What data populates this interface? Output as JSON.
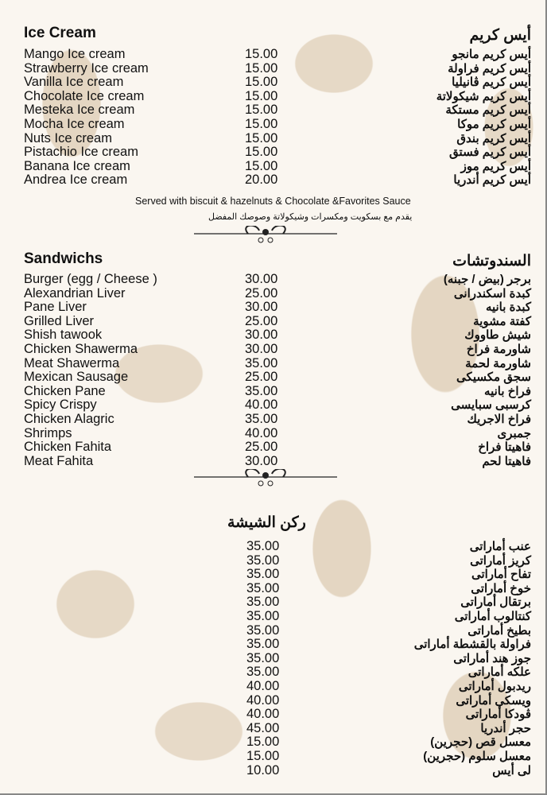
{
  "ice_cream": {
    "title_en": "Ice Cream",
    "title_ar": "أيس كريم",
    "items": [
      {
        "en": "Mango Ice cream",
        "price": "15.00",
        "ar": "أيس كريم مانجو"
      },
      {
        "en": "Strawberry Ice cream",
        "price": "15.00",
        "ar": "أيس كريم فراولة"
      },
      {
        "en": "Vanilla Ice cream",
        "price": "15.00",
        "ar": "أيس كريم ڤانيليا"
      },
      {
        "en": "Chocolate Ice cream",
        "price": "15.00",
        "ar": "أيس كريم شيكولاتة"
      },
      {
        "en": "Mesteka Ice cream",
        "price": "15.00",
        "ar": "أيس كريم مستكة"
      },
      {
        "en": "Mocha Ice cream",
        "price": "15.00",
        "ar": "أيس كريم موكا"
      },
      {
        "en": "Nuts Ice cream",
        "price": "15.00",
        "ar": "أيس كريم بندق"
      },
      {
        "en": "Pistachio Ice cream",
        "price": "15.00",
        "ar": "أيس كريم فستق"
      },
      {
        "en": "Banana Ice cream",
        "price": "15.00",
        "ar": "أيس كريم موز"
      },
      {
        "en": "Andrea Ice cream",
        "price": "20.00",
        "ar": "أيس كريم أندريا"
      }
    ],
    "note_en": "Served with biscuit & hazelnuts & Chocolate &Favorites Sauce",
    "note_ar": "يقدم مع بسكويت ومكسرات وشيكولاتة وصوصك المفضل"
  },
  "sandwiches": {
    "title_en": "Sandwichs",
    "title_ar": "السندوتشات",
    "items": [
      {
        "en": "Burger (egg / Cheese )",
        "price": "30.00",
        "ar": "برجر (بيض / جبنه)"
      },
      {
        "en": "Alexandrian Liver",
        "price": "25.00",
        "ar": "كبدة اسكندرانى"
      },
      {
        "en": "Pane Liver",
        "price": "30.00",
        "ar": "كبدة بانيه"
      },
      {
        "en": "Grilled Liver",
        "price": "25.00",
        "ar": "كفتة مشوية"
      },
      {
        "en": "Shish tawook",
        "price": "30.00",
        "ar": "شيش طاووك"
      },
      {
        "en": "Chicken Shawerma",
        "price": "30.00",
        "ar": "شاورمة فراخ"
      },
      {
        "en": "Meat Shawerma",
        "price": "35.00",
        "ar": "شاورمة لحمة"
      },
      {
        "en": "Mexican Sausage",
        "price": "25.00",
        "ar": "سجق مكسيكى"
      },
      {
        "en": "Chicken Pane",
        "price": "35.00",
        "ar": "فراخ بانيه"
      },
      {
        "en": "Spicy Crispy",
        "price": "40.00",
        "ar": "كرسبى سبايسى"
      },
      {
        "en": "Chicken Alagric",
        "price": "35.00",
        "ar": "فراخ الاجريك"
      },
      {
        "en": "Shrimps",
        "price": "40.00",
        "ar": "جمبرى"
      },
      {
        "en": "Chicken Fahita",
        "price": "25.00",
        "ar": "فاهيتا فراخ"
      },
      {
        "en": "Meat Fahita",
        "price": "30.00",
        "ar": "فاهيتا لحم"
      }
    ]
  },
  "shisha": {
    "title_ar": "ركن الشيشة",
    "items": [
      {
        "price": "35.00",
        "ar": "عنب أماراتى"
      },
      {
        "price": "35.00",
        "ar": "كريز أماراتى"
      },
      {
        "price": "35.00",
        "ar": "تفاح أماراتى"
      },
      {
        "price": "35.00",
        "ar": "خوخ أماراتى"
      },
      {
        "price": "35.00",
        "ar": "برتقال أماراتى"
      },
      {
        "price": "35.00",
        "ar": "كنتالوب أماراتى"
      },
      {
        "price": "35.00",
        "ar": "بطيخ أماراتى"
      },
      {
        "price": "35.00",
        "ar": "فراولة بالقشطة أماراتى"
      },
      {
        "price": "35.00",
        "ar": "جوز هند أماراتى"
      },
      {
        "price": "35.00",
        "ar": "علكه أماراتى"
      },
      {
        "price": "40.00",
        "ar": "ريدبول أماراتى"
      },
      {
        "price": "40.00",
        "ar": "ويسكى أماراتى"
      },
      {
        "price": "40.00",
        "ar": "ڤودكا أماراتى"
      },
      {
        "price": "45.00",
        "ar": "حجر أندريا"
      },
      {
        "price": "15.00",
        "ar": "معسل قص (حجرين)"
      },
      {
        "price": "15.00",
        "ar": "معسل سلوم (حجرين)"
      },
      {
        "price": "10.00",
        "ar": "لى أيس"
      }
    ]
  }
}
